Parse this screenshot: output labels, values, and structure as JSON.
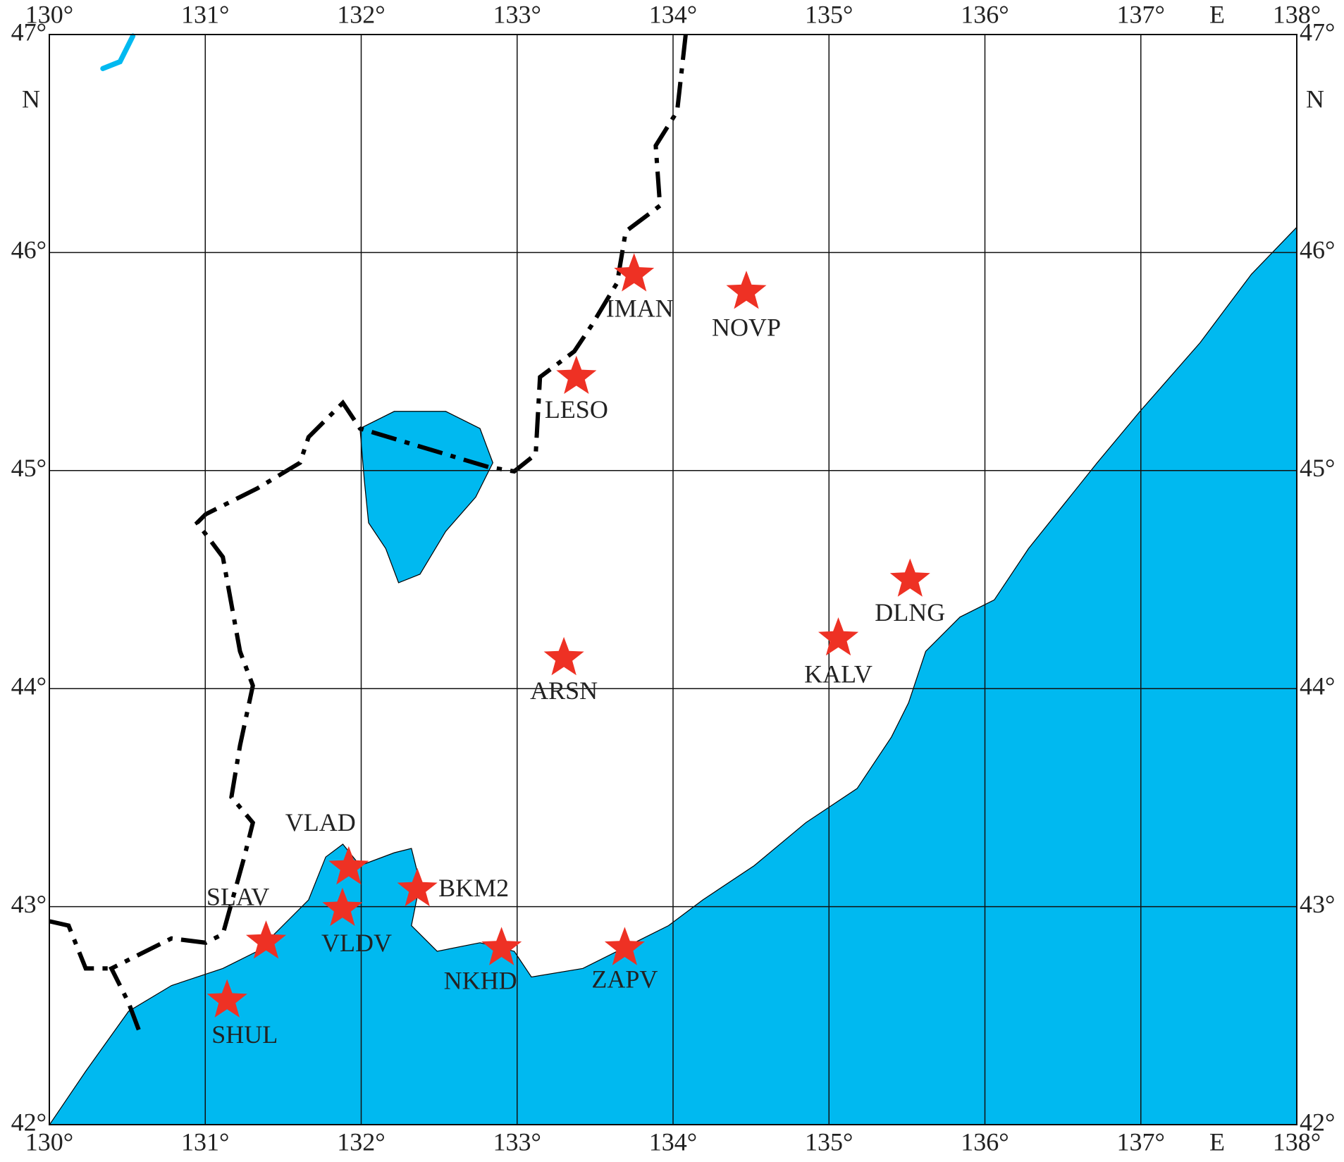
{
  "map": {
    "xlim": [
      130,
      138
    ],
    "ylim": [
      42,
      47
    ],
    "xticks": [
      {
        "value": 130,
        "label": "130°"
      },
      {
        "value": 131,
        "label": "131°"
      },
      {
        "value": 132,
        "label": "132°"
      },
      {
        "value": 133,
        "label": "133°"
      },
      {
        "value": 134,
        "label": "134°"
      },
      {
        "value": 135,
        "label": "135°"
      },
      {
        "value": 136,
        "label": "136°"
      },
      {
        "value": 137,
        "label": "137°"
      },
      {
        "value": 138,
        "label": "138°"
      }
    ],
    "yticks": [
      {
        "value": 47,
        "label": "47°"
      },
      {
        "value": 46,
        "label": "46°"
      },
      {
        "value": 45,
        "label": "45°"
      },
      {
        "value": 44,
        "label": "44°"
      },
      {
        "value": 43,
        "label": "43°"
      },
      {
        "value": 42,
        "label": "42°"
      }
    ],
    "x_axis_label": "E",
    "y_axis_label": "N",
    "marker_color": "#ee3124",
    "stations": [
      {
        "name": "IMAN",
        "lon": 133.75,
        "lat": 45.9
      },
      {
        "name": "NOVP",
        "lon": 134.47,
        "lat": 45.82
      },
      {
        "name": "LESO",
        "lon": 133.38,
        "lat": 45.43
      },
      {
        "name": "ARSN",
        "lon": 133.3,
        "lat": 44.14
      },
      {
        "name": "DLNG",
        "lon": 135.52,
        "lat": 44.5
      },
      {
        "name": "KALV",
        "lon": 135.06,
        "lat": 44.23
      },
      {
        "name": "VLAD",
        "lon": 131.92,
        "lat": 43.18
      },
      {
        "name": "BKM2",
        "lon": 132.36,
        "lat": 43.08
      },
      {
        "name": "VLDV",
        "lon": 131.88,
        "lat": 42.99
      },
      {
        "name": "SLAV",
        "lon": 131.39,
        "lat": 42.84
      },
      {
        "name": "NKHD",
        "lon": 132.9,
        "lat": 42.81
      },
      {
        "name": "ZAPV",
        "lon": 133.69,
        "lat": 42.81
      },
      {
        "name": "SHUL",
        "lon": 131.14,
        "lat": 42.57
      }
    ]
  }
}
